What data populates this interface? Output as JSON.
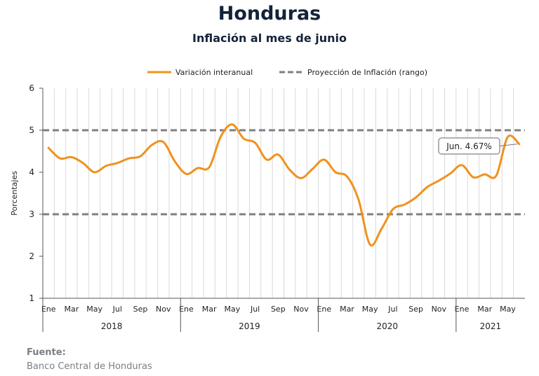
{
  "header": {
    "title": "Honduras",
    "subtitle": "Inflación al mes de junio"
  },
  "source": {
    "label": "Fuente:",
    "value": "Banco Central de Honduras"
  },
  "colors": {
    "series": "#f0921e",
    "range": "#7f7f7f",
    "grid": "#d9d9d9"
  },
  "chart_data": {
    "type": "line",
    "title": "Honduras",
    "subtitle": "Inflación al mes de junio",
    "ylabel": "Porcentajes",
    "xlabel": "",
    "ylim": [
      1,
      6
    ],
    "yticks": [
      1,
      2,
      3,
      4,
      5,
      6
    ],
    "grid": true,
    "legend_position": "top",
    "x": [
      "2018-01",
      "2018-02",
      "2018-03",
      "2018-04",
      "2018-05",
      "2018-06",
      "2018-07",
      "2018-08",
      "2018-09",
      "2018-10",
      "2018-11",
      "2018-12",
      "2019-01",
      "2019-02",
      "2019-03",
      "2019-04",
      "2019-05",
      "2019-06",
      "2019-07",
      "2019-08",
      "2019-09",
      "2019-10",
      "2019-11",
      "2019-12",
      "2020-01",
      "2020-02",
      "2020-03",
      "2020-04",
      "2020-05",
      "2020-06",
      "2020-07",
      "2020-08",
      "2020-09",
      "2020-10",
      "2020-11",
      "2020-12",
      "2021-01",
      "2021-02",
      "2021-03",
      "2021-04",
      "2021-05",
      "2021-06"
    ],
    "month_tick_labels": [
      "Ene",
      "",
      "Mar",
      "",
      "May",
      "",
      "Jul",
      "",
      "Sep",
      "",
      "Nov",
      "",
      "Ene",
      "",
      "Mar",
      "",
      "May",
      "",
      "Jul",
      "",
      "Sep",
      "",
      "Nov",
      "",
      "Ene",
      "",
      "Mar",
      "",
      "May",
      "",
      "Jul",
      "",
      "Sep",
      "",
      "Nov",
      "",
      "Ene",
      "",
      "Mar",
      "",
      "May",
      ""
    ],
    "year_groups": [
      {
        "label": "2018",
        "start": 0,
        "end": 11
      },
      {
        "label": "2019",
        "start": 12,
        "end": 23
      },
      {
        "label": "2020",
        "start": 24,
        "end": 35
      },
      {
        "label": "2021",
        "start": 36,
        "end": 41
      }
    ],
    "series": [
      {
        "name": "Variación interanual",
        "values": [
          4.58,
          4.33,
          4.36,
          4.22,
          4.0,
          4.15,
          4.22,
          4.33,
          4.38,
          4.65,
          4.72,
          4.26,
          3.96,
          4.1,
          4.12,
          4.85,
          5.14,
          4.8,
          4.7,
          4.3,
          4.42,
          4.06,
          3.86,
          4.08,
          4.3,
          4.0,
          3.9,
          3.35,
          2.28,
          2.65,
          3.12,
          3.23,
          3.4,
          3.65,
          3.8,
          3.97,
          4.17,
          3.88,
          3.95,
          3.92,
          4.84,
          4.67
        ]
      }
    ],
    "reference_lines": [
      {
        "name": "Proyección de Inflación (rango)",
        "values": [
          3,
          5
        ]
      }
    ],
    "annotation": {
      "text": "Jun. 4.67%",
      "x": "2021-06",
      "y": 4.67
    }
  }
}
